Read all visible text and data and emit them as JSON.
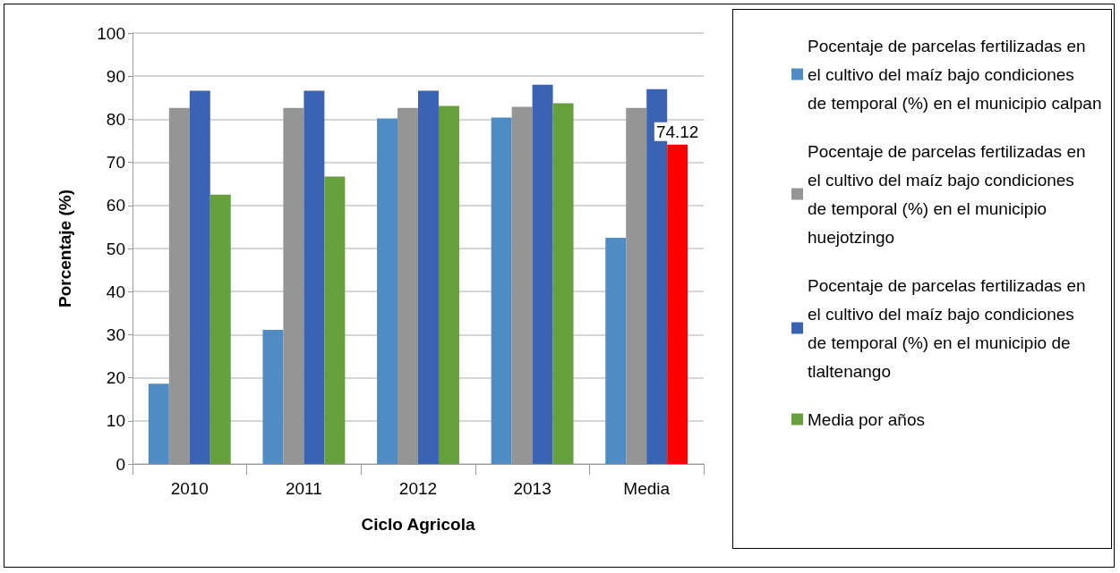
{
  "chart_data": {
    "type": "bar",
    "xlabel": "Ciclo Agricola",
    "ylabel": "Porcentaje (%)",
    "categories": [
      "2010",
      "2011",
      "2012",
      "2013",
      "Media"
    ],
    "series": [
      {
        "name": "Pocentaje de parcelas fertilizadas en el cultivo del maíz bajo condiciones de temporal (%) en el municipio calpan",
        "color": "#4f8cc4",
        "values": [
          18.6,
          31.1,
          80.2,
          80.4,
          52.5
        ]
      },
      {
        "name": "Pocentaje de parcelas fertilizadas en el cultivo del maíz bajo condiciones de temporal (%) en el municipio huejotzingo",
        "color": "#959595",
        "values": [
          82.6,
          82.6,
          82.6,
          82.9,
          82.6
        ]
      },
      {
        "name": "Pocentaje de parcelas fertilizadas en el cultivo del maíz bajo condiciones de temporal (%) en el municipio de tlaltenango",
        "color": "#3a63b4",
        "values": [
          86.6,
          86.6,
          86.6,
          88.0,
          87.0
        ]
      },
      {
        "name": "Media por años",
        "color": "#66a03c",
        "colors": [
          "#66a03c",
          "#66a03c",
          "#66a03c",
          "#66a03c",
          "#ff0000"
        ],
        "values": [
          62.5,
          66.7,
          83.1,
          83.7,
          74.12
        ],
        "value_labels": [
          null,
          null,
          null,
          null,
          "74.12"
        ]
      }
    ],
    "ylim": [
      0,
      100
    ],
    "yticks": [
      0,
      10,
      20,
      30,
      40,
      50,
      60,
      70,
      80,
      90,
      100
    ],
    "grid": "y",
    "legend": "right"
  }
}
